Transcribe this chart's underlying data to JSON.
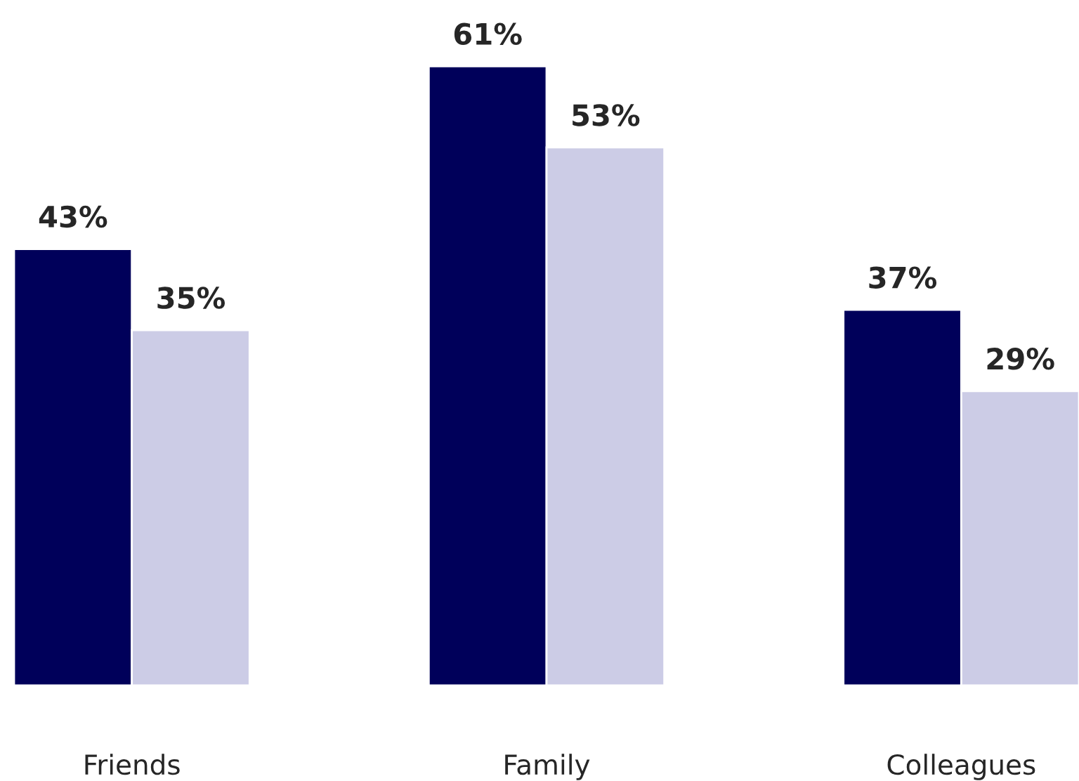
{
  "chart_data": {
    "type": "bar",
    "categories": [
      "Friends",
      "Family",
      "Colleagues"
    ],
    "series": [
      {
        "color": "#00005a",
        "values": [
          43,
          61,
          37
        ],
        "value_labels": [
          "43%",
          "61%",
          "37%"
        ]
      },
      {
        "color": "#cccce6",
        "values": [
          35,
          53,
          29
        ],
        "value_labels": [
          "35%",
          "53%",
          "29%"
        ]
      }
    ],
    "grid": false,
    "legend": false
  }
}
